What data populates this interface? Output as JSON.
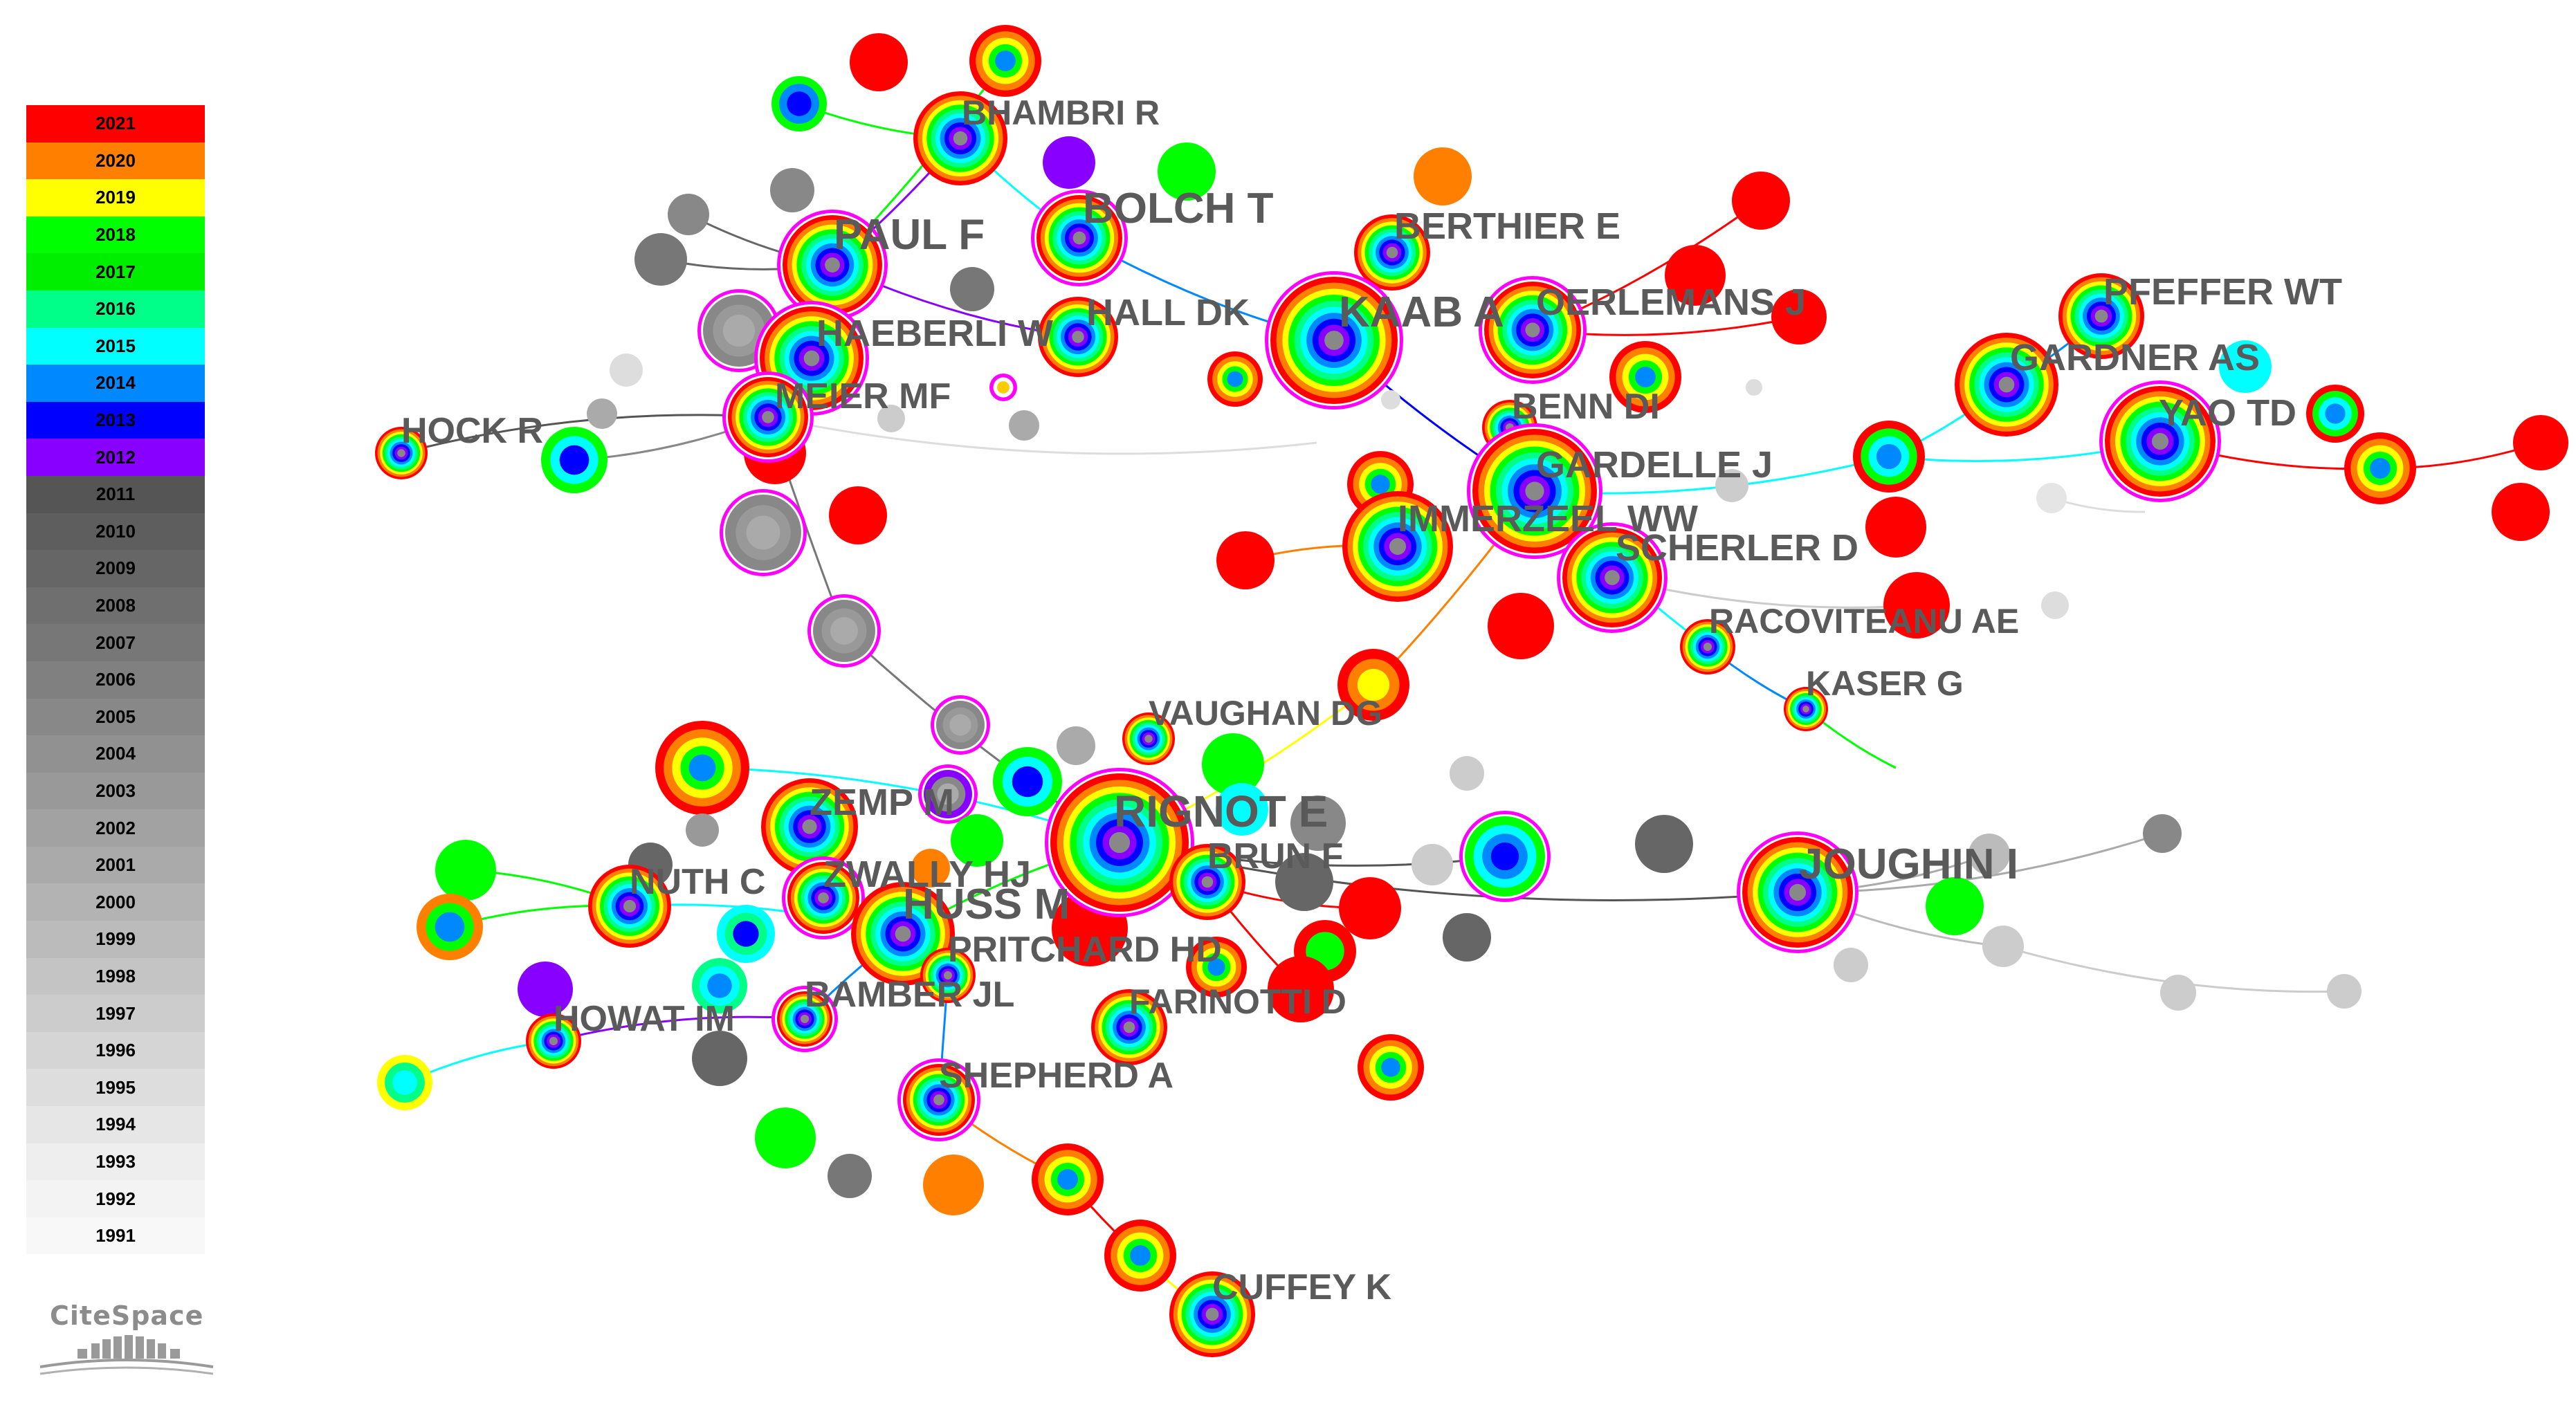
{
  "legend": {
    "years": [
      {
        "year": "2021",
        "color": "#ff0000"
      },
      {
        "year": "2020",
        "color": "#ff8000"
      },
      {
        "year": "2019",
        "color": "#ffff00"
      },
      {
        "year": "2018",
        "color": "#00ff00"
      },
      {
        "year": "2017",
        "color": "#00ee00"
      },
      {
        "year": "2016",
        "color": "#00ff88"
      },
      {
        "year": "2015",
        "color": "#00ffff"
      },
      {
        "year": "2014",
        "color": "#0088ff"
      },
      {
        "year": "2013",
        "color": "#0000ff"
      },
      {
        "year": "2012",
        "color": "#8800ff"
      },
      {
        "year": "2011",
        "color": "#555555"
      },
      {
        "year": "2010",
        "color": "#5e5e5e"
      },
      {
        "year": "2009",
        "color": "#666666"
      },
      {
        "year": "2008",
        "color": "#6f6f6f"
      },
      {
        "year": "2007",
        "color": "#777777"
      },
      {
        "year": "2006",
        "color": "#808080"
      },
      {
        "year": "2005",
        "color": "#888888"
      },
      {
        "year": "2004",
        "color": "#919191"
      },
      {
        "year": "2003",
        "color": "#999999"
      },
      {
        "year": "2002",
        "color": "#a2a2a2"
      },
      {
        "year": "2001",
        "color": "#aaaaaa"
      },
      {
        "year": "2000",
        "color": "#b3b3b3"
      },
      {
        "year": "1999",
        "color": "#bbbbbb"
      },
      {
        "year": "1998",
        "color": "#c4c4c4"
      },
      {
        "year": "1997",
        "color": "#cccccc"
      },
      {
        "year": "1996",
        "color": "#d5d5d5"
      },
      {
        "year": "1995",
        "color": "#dddddd"
      },
      {
        "year": "1994",
        "color": "#e6e6e6"
      },
      {
        "year": "1993",
        "color": "#eeeeee"
      },
      {
        "year": "1992",
        "color": "#f3f3f3"
      },
      {
        "year": "1991",
        "color": "#f8f8f8"
      }
    ]
  },
  "logo": {
    "text": "CiteSpace"
  },
  "nodes": [
    {
      "label": "BHAMBRI R",
      "ring": "full",
      "purple": false
    },
    {
      "label": "BOLCH T",
      "ring": "full",
      "purple": true
    },
    {
      "label": "PAUL F",
      "ring": "full",
      "purple": true
    },
    {
      "label": "BERTHIER E",
      "ring": "full",
      "purple": false
    },
    {
      "label": "HAEBERLI W",
      "ring": "full",
      "purple": true
    },
    {
      "label": "HALL DK",
      "ring": "full",
      "purple": false
    },
    {
      "label": "KAAB A",
      "ring": "full",
      "purple": true
    },
    {
      "label": "OERLEMANS J",
      "ring": "full",
      "purple": true
    },
    {
      "label": "PFEFFER WT",
      "ring": "full",
      "purple": false
    },
    {
      "label": "GARDNER AS",
      "ring": "full",
      "purple": false
    },
    {
      "label": "MEIER MF",
      "ring": "full",
      "purple": true
    },
    {
      "label": "HOCK R",
      "ring": "full",
      "purple": false
    },
    {
      "label": "BENN DI",
      "ring": "full",
      "purple": false
    },
    {
      "label": "YAO TD",
      "ring": "full",
      "purple": true
    },
    {
      "label": "GARDELLE J",
      "ring": "full",
      "purple": true
    },
    {
      "label": "IMMERZEEL WW",
      "ring": "full",
      "purple": false
    },
    {
      "label": "SCHERLER D",
      "ring": "full",
      "purple": true
    },
    {
      "label": "RACOVITEANU AE",
      "ring": "full",
      "purple": false
    },
    {
      "label": "KASER G",
      "ring": "full",
      "purple": false
    },
    {
      "label": "VAUGHAN DG",
      "ring": "full",
      "purple": false
    },
    {
      "label": "RIGNOT E",
      "ring": "full",
      "purple": true
    },
    {
      "label": "ZEMP M",
      "ring": "full",
      "purple": false
    },
    {
      "label": "BRUN F",
      "ring": "full",
      "purple": false
    },
    {
      "label": "JOUGHIN I",
      "ring": "full",
      "purple": true
    },
    {
      "label": "NUTH C",
      "ring": "full",
      "purple": false
    },
    {
      "label": "ZWALLY HJ",
      "ring": "full",
      "purple": true
    },
    {
      "label": "HUSS M",
      "ring": "full",
      "purple": false
    },
    {
      "label": "PRITCHARD HD",
      "ring": "full",
      "purple": false
    },
    {
      "label": "BAMBER JL",
      "ring": "full",
      "purple": true
    },
    {
      "label": "FARINOTTI D",
      "ring": "full",
      "purple": false
    },
    {
      "label": "HOWAT IM",
      "ring": "full",
      "purple": false
    },
    {
      "label": "SHEPHERD A",
      "ring": "full",
      "purple": true
    },
    {
      "label": "CUFFEY K",
      "ring": "full",
      "purple": false
    }
  ]
}
